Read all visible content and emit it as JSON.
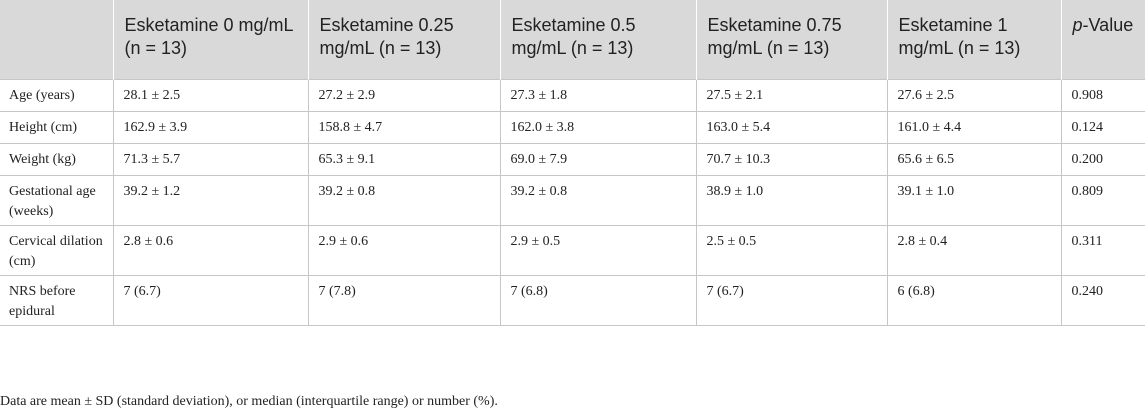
{
  "table": {
    "headers": [
      "",
      "Esketamine 0 mg/mL (n = 13)",
      "Esketamine 0.25 mg/mL (n = 13)",
      "Esketamine 0.5 mg/mL (n = 13)",
      "Esketamine 0.75 mg/mL (n = 13)",
      "Esketamine 1 mg/mL (n = 13)"
    ],
    "pvalue_header": {
      "italic": "p",
      "rest": "-Value"
    },
    "rows": [
      [
        "Age (years)",
        "28.1 ± 2.5",
        "27.2 ± 2.9",
        "27.3 ± 1.8",
        "27.5 ± 2.1",
        "27.6 ± 2.5",
        "0.908"
      ],
      [
        "Height (cm)",
        "162.9 ± 3.9",
        "158.8 ± 4.7",
        "162.0 ± 3.8",
        "163.0 ± 5.4",
        "161.0 ± 4.4",
        "0.124"
      ],
      [
        "Weight (kg)",
        "71.3 ± 5.7",
        "65.3 ± 9.1",
        "69.0 ± 7.9",
        "70.7 ± 10.3",
        "65.6 ± 6.5",
        "0.200"
      ],
      [
        "Gestational age (weeks)",
        "39.2 ± 1.2",
        "39.2 ± 0.8",
        "39.2 ± 0.8",
        "38.9 ± 1.0",
        "39.1 ± 1.0",
        "0.809"
      ],
      [
        "Cervical dilation (cm)",
        "2.8 ± 0.6",
        "2.9 ± 0.6",
        "2.9 ± 0.5",
        "2.5 ± 0.5",
        "2.8 ± 0.4",
        "0.311"
      ],
      [
        "NRS before epidural",
        "7 (6.7)",
        "7 (7.8)",
        "7 (6.8)",
        "7 (6.7)",
        "6 (6.8)",
        "0.240"
      ]
    ]
  },
  "footnote": "Data are mean ± SD (standard deviation), or median (interquartile range) or number (%).",
  "colors": {
    "header_bg": "#d9d9d9",
    "grid": "#c6c6c6",
    "text": "#222222"
  }
}
